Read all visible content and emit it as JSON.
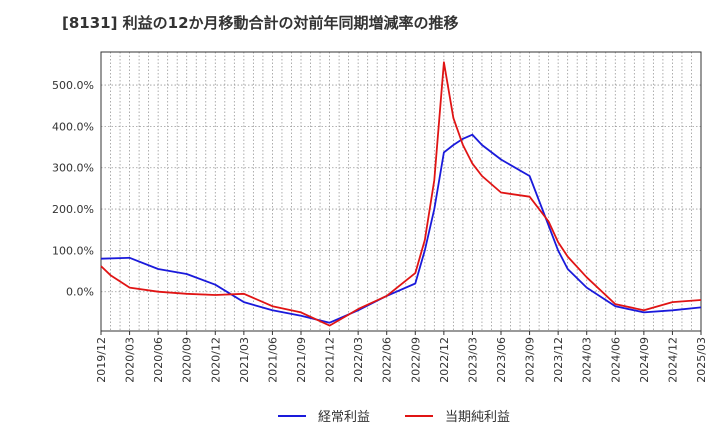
{
  "chart_data": {
    "type": "line",
    "title": "[8131]  利益の12か月移動合計の対前年同期増減率の推移",
    "xlabel": "",
    "ylabel": "",
    "ylim": [
      -95,
      580
    ],
    "y_ticks": [
      0,
      100,
      200,
      300,
      400,
      500
    ],
    "y_tick_labels": [
      "0.0%",
      "100.0%",
      "200.0%",
      "300.0%",
      "400.0%",
      "500.0%"
    ],
    "x_tick_labels": [
      "2019/12",
      "2020/03",
      "2020/06",
      "2020/09",
      "2020/12",
      "2021/03",
      "2021/06",
      "2021/09",
      "2021/12",
      "2022/03",
      "2022/06",
      "2022/09",
      "2022/12",
      "2023/03",
      "2023/06",
      "2023/09",
      "2023/12",
      "2024/03",
      "2024/06",
      "2024/09",
      "2024/12",
      "2025/03"
    ],
    "x_index_range": [
      0,
      63
    ],
    "grid": true,
    "legend_position": "bottom",
    "series": [
      {
        "name": "経常利益",
        "color": "#1a1adb",
        "x": [
          0,
          3,
          6,
          9,
          12,
          15,
          18,
          21,
          24,
          27,
          30,
          33,
          34,
          35,
          36,
          37,
          38,
          39,
          40,
          42,
          45,
          47,
          48,
          49,
          51,
          54,
          57,
          60,
          63
        ],
        "values": [
          80,
          82,
          55,
          43,
          17,
          -25,
          -45,
          -58,
          -75,
          -45,
          -10,
          20,
          100,
          200,
          337,
          355,
          370,
          380,
          355,
          320,
          280,
          160,
          100,
          55,
          10,
          -35,
          -50,
          -45,
          -38
        ]
      },
      {
        "name": "当期純利益",
        "color": "#e01414",
        "x": [
          0,
          1,
          3,
          6,
          9,
          12,
          15,
          18,
          21,
          24,
          27,
          30,
          33,
          34,
          35,
          36,
          37,
          38,
          39,
          40,
          42,
          45,
          47,
          48,
          49,
          51,
          54,
          57,
          60,
          63
        ],
        "values": [
          62,
          40,
          10,
          0,
          -5,
          -8,
          -5,
          -35,
          -50,
          -82,
          -42,
          -10,
          45,
          125,
          270,
          555,
          420,
          355,
          310,
          280,
          240,
          230,
          170,
          120,
          85,
          35,
          -30,
          -45,
          -25,
          -20
        ]
      }
    ]
  }
}
